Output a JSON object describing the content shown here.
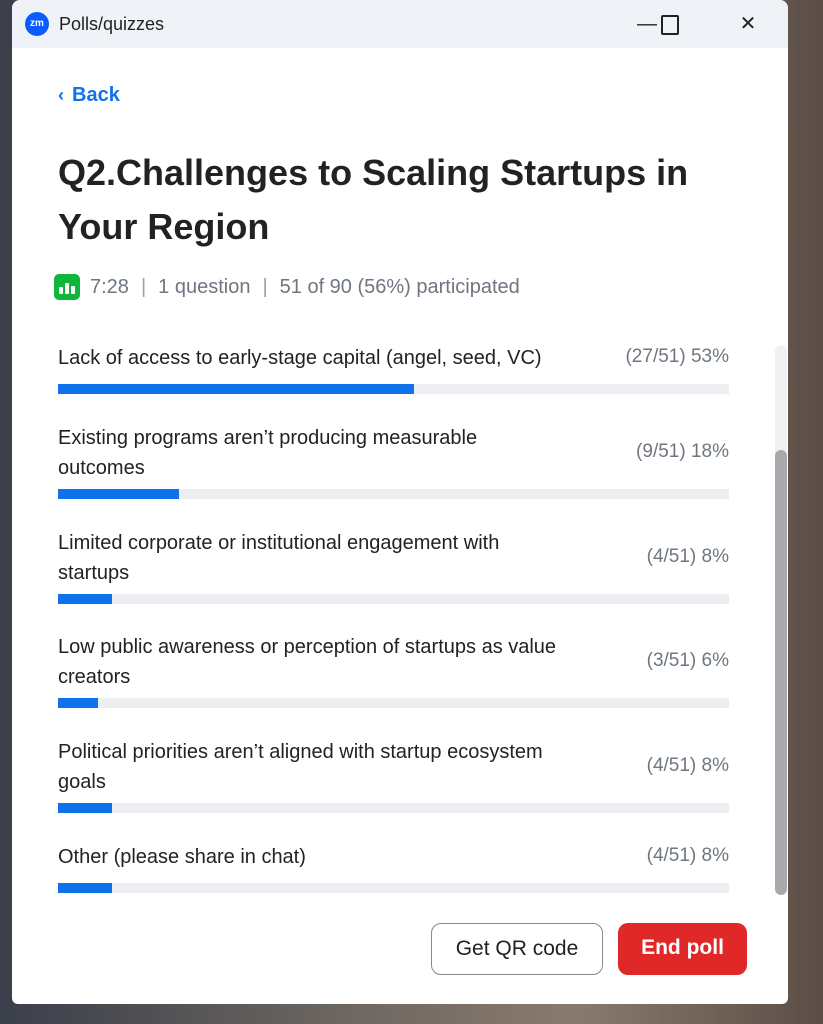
{
  "window": {
    "title": "Polls/quizzes",
    "logo": "zm"
  },
  "back_label": "Back",
  "question_title": "Q2.Challenges to Scaling Startups in Your Region",
  "meta": {
    "time": "7:28",
    "questions": "1 question",
    "participation": "51 of 90 (56%) participated",
    "icon": "poll-chart-icon",
    "icon_color": "#12b53b"
  },
  "options": [
    {
      "label": "Lack of access to early-stage capital (angel, seed, VC)",
      "result": "(27/51) 53%",
      "percent": 53
    },
    {
      "label": "Existing programs aren’t producing measurable outcomes",
      "result": "(9/51) 18%",
      "percent": 18
    },
    {
      "label": "Limited corporate or institutional engagement with startups",
      "result": "(4/51) 8%",
      "percent": 8
    },
    {
      "label": "Low public awareness or perception of startups as value creators",
      "result": "(3/51) 6%",
      "percent": 6
    },
    {
      "label": "Political priorities aren’t aligned with startup ecosystem goals",
      "result": "(4/51) 8%",
      "percent": 8
    },
    {
      "label": "Other (please share in chat)",
      "result": "(4/51) 8%",
      "percent": 8
    }
  ],
  "buttons": {
    "qr": "Get QR code",
    "end": "End poll"
  },
  "colors": {
    "accent": "#0e72ed",
    "danger": "#e02828"
  }
}
